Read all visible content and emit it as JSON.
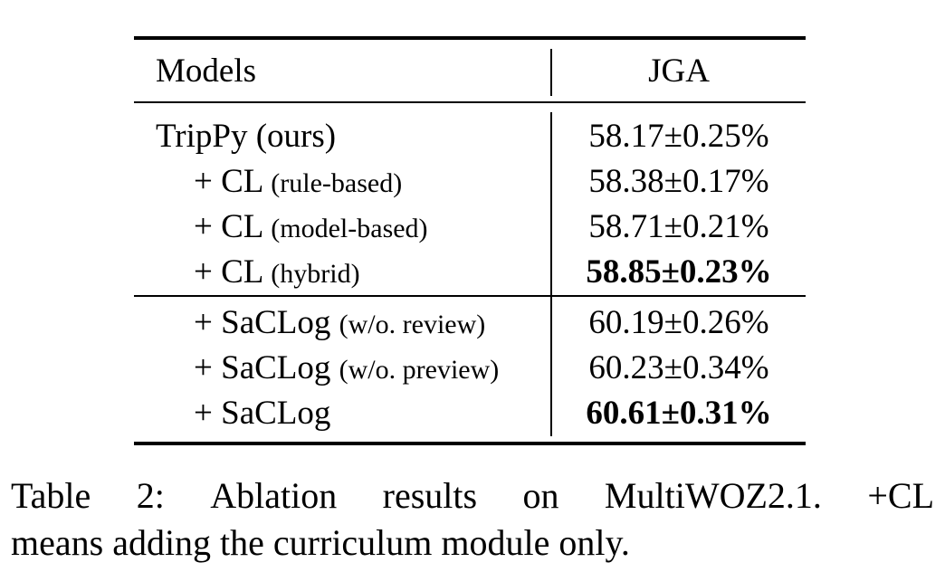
{
  "table": {
    "header": {
      "models": "Models",
      "jga": "JGA"
    },
    "rows": [
      {
        "model": "TripPy (ours)",
        "note": "",
        "jga": "58.17±0.25%",
        "bold": false
      },
      {
        "model": "+ CL",
        "note": "(rule-based)",
        "jga": "58.38±0.17%",
        "bold": false
      },
      {
        "model": "+ CL",
        "note": "(model-based)",
        "jga": "58.71±0.21%",
        "bold": false
      },
      {
        "model": "+ CL",
        "note": "(hybrid)",
        "jga": "58.85±0.23%",
        "bold": true
      },
      {
        "model": "+ SaCLog",
        "note": "(w/o. review)",
        "jga": "60.19±0.26%",
        "bold": false
      },
      {
        "model": "+ SaCLog",
        "note": "(w/o. preview)",
        "jga": "60.23±0.34%",
        "bold": false
      },
      {
        "model": "+ SaCLog",
        "note": "",
        "jga": "60.61±0.31%",
        "bold": true
      }
    ]
  },
  "caption": {
    "words_line1": [
      "Table",
      "2:",
      "Ablation",
      "results",
      "on",
      "MultiWOZ2.1.",
      "+CL"
    ],
    "line2": "means adding the curriculum module only."
  }
}
